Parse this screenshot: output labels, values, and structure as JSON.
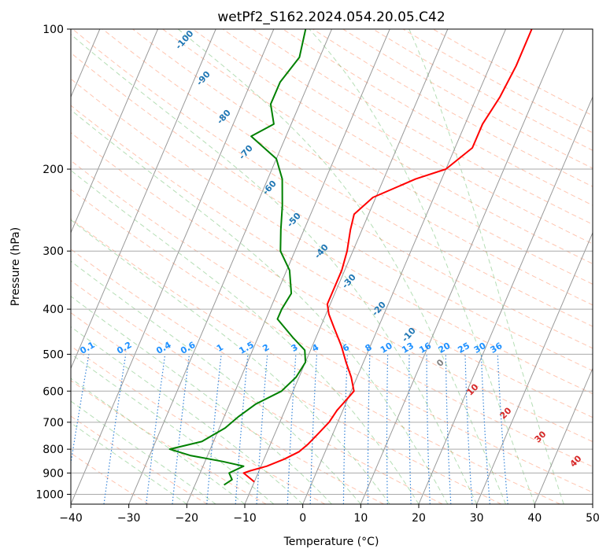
{
  "chart_data": {
    "type": "line",
    "title": "wetPf2_S162.2024.054.20.05.C42",
    "xlabel": "Temperature (°C)",
    "ylabel": "Pressure (hPa)",
    "xlim": [
      -40,
      50
    ],
    "ylim": [
      1050,
      100
    ],
    "y_scale": "log",
    "grid": true,
    "x_ticks": [
      -40,
      -30,
      -20,
      -10,
      0,
      10,
      20,
      30,
      40,
      50
    ],
    "y_ticks": [
      1000,
      900,
      800,
      700,
      600,
      500,
      400,
      300,
      200,
      100
    ],
    "skew": 35,
    "series": [
      {
        "color": "#ff0000",
        "points": [
          [
            -10,
            940
          ],
          [
            -12.5,
            900
          ],
          [
            -11.5,
            890
          ],
          [
            -9,
            870
          ],
          [
            -6.5,
            840
          ],
          [
            -4.5,
            810
          ],
          [
            -3.5,
            780
          ],
          [
            -2.5,
            740
          ],
          [
            -1.5,
            700
          ],
          [
            -1,
            660
          ],
          [
            0,
            620
          ],
          [
            0.5,
            600
          ],
          [
            -1,
            560
          ],
          [
            -3,
            520
          ],
          [
            -5,
            480
          ],
          [
            -7.5,
            440
          ],
          [
            -9.5,
            410
          ],
          [
            -10.5,
            390
          ],
          [
            -10.5,
            360
          ],
          [
            -10.5,
            330
          ],
          [
            -11,
            300
          ],
          [
            -12,
            270
          ],
          [
            -12.5,
            250
          ],
          [
            -10.5,
            230
          ],
          [
            -4.5,
            210
          ],
          [
            0,
            200
          ],
          [
            3,
            180
          ],
          [
            3,
            160
          ],
          [
            4,
            140
          ],
          [
            4.5,
            120
          ],
          [
            4.5,
            100
          ]
        ]
      },
      {
        "color": "#008000",
        "points": [
          [
            -15,
            955
          ],
          [
            -14,
            930
          ],
          [
            -15,
            900
          ],
          [
            -13,
            870
          ],
          [
            -17,
            850
          ],
          [
            -23,
            825
          ],
          [
            -27,
            800
          ],
          [
            -22,
            770
          ],
          [
            -19,
            720
          ],
          [
            -17.5,
            680
          ],
          [
            -15.5,
            640
          ],
          [
            -12,
            600
          ],
          [
            -10.5,
            560
          ],
          [
            -10,
            520
          ],
          [
            -11,
            490
          ],
          [
            -14,
            460
          ],
          [
            -18,
            420
          ],
          [
            -18,
            400
          ],
          [
            -17.5,
            370
          ],
          [
            -19.5,
            330
          ],
          [
            -22.5,
            300
          ],
          [
            -24,
            270
          ],
          [
            -25.5,
            240
          ],
          [
            -27.5,
            210
          ],
          [
            -30,
            190
          ],
          [
            -36,
            170
          ],
          [
            -33,
            160
          ],
          [
            -35,
            145
          ],
          [
            -35,
            130
          ],
          [
            -33.5,
            115
          ],
          [
            -34.5,
            100
          ]
        ]
      }
    ],
    "dry_adiabat_labels": [
      "-100",
      "-90",
      "-80",
      "-70",
      "-60",
      "-50",
      "-40",
      "-30",
      "-20",
      "-10"
    ],
    "mixing_ratio_labels": [
      "0.1",
      "0.2",
      "0.4",
      "0.6",
      "1",
      "1.5",
      "2",
      "3",
      "4",
      "6",
      "8",
      "10",
      "13",
      "16",
      "20",
      "25",
      "30",
      "36"
    ],
    "moist_adiabat_labels": [
      "0",
      "10",
      "20",
      "30",
      "40"
    ],
    "colors": {
      "isotherm": "#000000",
      "dry_adiabat": "#ff7f50",
      "moist_adiabat": "#2ca02c",
      "mixing_ratio": "#1f77d4",
      "dry_label": "#1f77b4",
      "mix_label": "#1e90ff",
      "moist_label": "#d62728",
      "moist_zero_label": "#808080"
    }
  }
}
